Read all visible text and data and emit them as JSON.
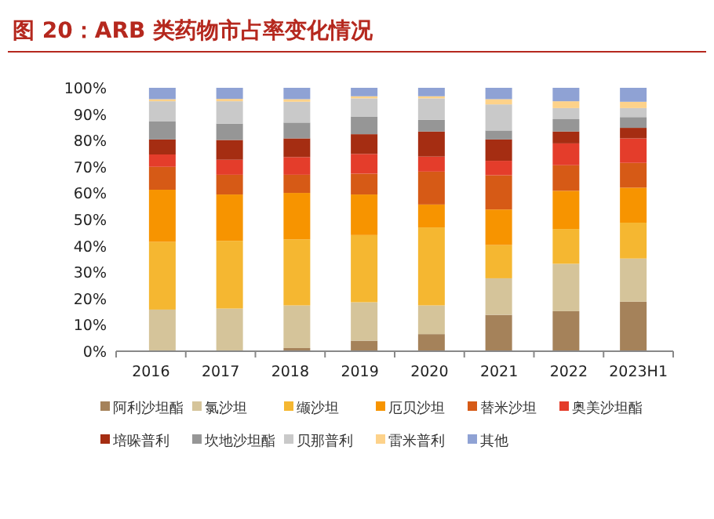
{
  "chart_data": {
    "type": "bar",
    "stacked": true,
    "title": "图 20：ARB 类药物市占率变化情况",
    "categories": [
      "2016",
      "2017",
      "2018",
      "2019",
      "2020",
      "2021",
      "2022",
      "2023H1"
    ],
    "ylim": [
      0,
      100
    ],
    "yticks": [
      {
        "value": 0,
        "label": "0%"
      },
      {
        "value": 10,
        "label": "10%"
      },
      {
        "value": 20,
        "label": "20%"
      },
      {
        "value": 30,
        "label": "30%"
      },
      {
        "value": 40,
        "label": "40%"
      },
      {
        "value": 50,
        "label": "50%"
      },
      {
        "value": 60,
        "label": "60%"
      },
      {
        "value": 70,
        "label": "70%"
      },
      {
        "value": 80,
        "label": "80%"
      },
      {
        "value": 90,
        "label": "90%"
      },
      {
        "value": 100,
        "label": "100%"
      }
    ],
    "legend": "bottom",
    "series": [
      {
        "name": "阿利沙坦酯",
        "color": "#a5825a",
        "values": [
          0,
          0,
          1.2,
          4.0,
          6.5,
          13.8,
          15.2,
          18.8
        ]
      },
      {
        "name": "氯沙坦",
        "color": "#d5c49a",
        "values": [
          15.8,
          16.2,
          16.2,
          14.6,
          10.9,
          13.9,
          18.0,
          16.4
        ]
      },
      {
        "name": "缬沙坦",
        "color": "#f5b731",
        "values": [
          25.7,
          25.7,
          25.1,
          25.5,
          29.6,
          12.6,
          13.2,
          13.6
        ]
      },
      {
        "name": "厄贝沙坦",
        "color": "#f79400",
        "values": [
          19.8,
          17.6,
          17.6,
          15.4,
          8.7,
          13.5,
          14.5,
          13.3
        ]
      },
      {
        "name": "替米沙坦",
        "color": "#d65a16",
        "values": [
          8.7,
          7.5,
          6.9,
          7.9,
          12.5,
          13.0,
          9.7,
          9.4
        ]
      },
      {
        "name": "奥美沙坦酯",
        "color": "#e43d2b",
        "values": [
          4.7,
          5.7,
          6.7,
          7.5,
          5.7,
          5.5,
          8.3,
          9.3
        ]
      },
      {
        "name": "培哚普利",
        "color": "#a52d12",
        "values": [
          5.7,
          7.5,
          7.1,
          7.5,
          9.5,
          8.1,
          4.5,
          4.0
        ]
      },
      {
        "name": "坎地沙坦酯",
        "color": "#969696",
        "values": [
          6.8,
          6.2,
          6.0,
          6.7,
          4.5,
          3.4,
          4.7,
          4.1
        ]
      },
      {
        "name": "贝那普利",
        "color": "#c9c9c9",
        "values": [
          7.7,
          8.5,
          7.9,
          6.9,
          8.1,
          9.9,
          4.2,
          3.4
        ]
      },
      {
        "name": "雷米普利",
        "color": "#fdd28a",
        "values": [
          0.8,
          0.9,
          1.0,
          0.8,
          0.8,
          2.0,
          2.6,
          2.4
        ]
      },
      {
        "name": "其他",
        "color": "#8fa2d4",
        "values": [
          4.3,
          4.2,
          4.3,
          3.2,
          3.2,
          4.3,
          5.1,
          5.3
        ]
      }
    ]
  }
}
